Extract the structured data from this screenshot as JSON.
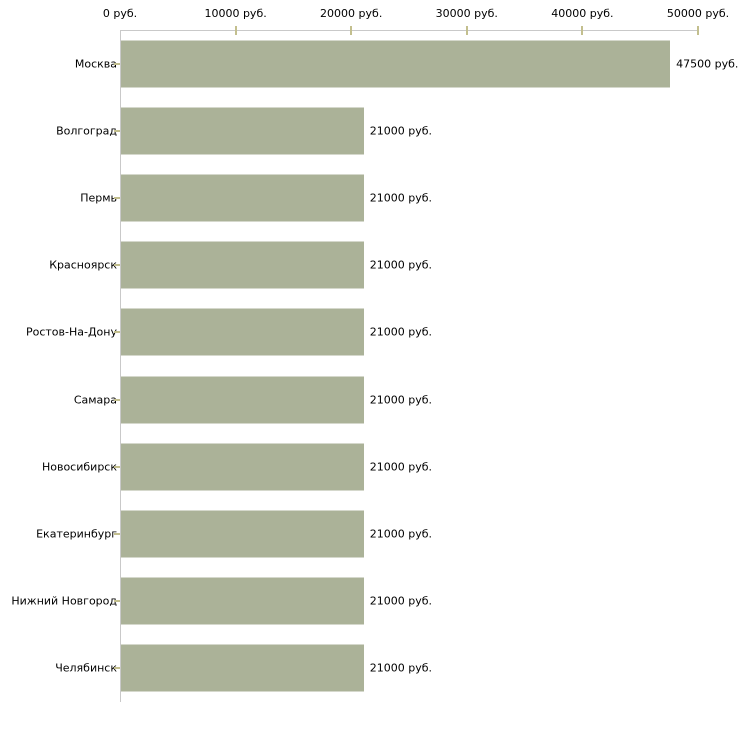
{
  "chart_data": {
    "type": "bar",
    "orientation": "horizontal",
    "title": "",
    "xlabel": "",
    "ylabel": "",
    "unit": "руб.",
    "categories": [
      "Москва",
      "Волгоград",
      "Пермь",
      "Красноярск",
      "Ростов-На-Дону",
      "Самара",
      "Новосибирск",
      "Екатеринбург",
      "Нижний Новгород",
      "Челябинск"
    ],
    "values": [
      47500,
      21000,
      21000,
      21000,
      21000,
      21000,
      21000,
      21000,
      21000,
      21000
    ],
    "bar_labels": [
      "47500 руб.",
      "21000 руб.",
      "21000 руб.",
      "21000 руб.",
      "21000 руб.",
      "21000 руб.",
      "21000 руб.",
      "21000 руб.",
      "21000 руб.",
      "21000 руб."
    ],
    "x_ticks": [
      "0 руб.",
      "10000 руб.",
      "20000 руб.",
      "30000 руб.",
      "40000 руб.",
      "50000 руб."
    ],
    "x_tick_values": [
      0,
      10000,
      20000,
      30000,
      40000,
      50000
    ],
    "xlim": [
      0,
      50000
    ],
    "grid": false,
    "legend": null,
    "axis_position": "top"
  },
  "colors": {
    "bar": "#abb298",
    "axis_line": "#c9c9c9",
    "tick_mark": "#c3bf8e",
    "text": "#000000",
    "background": "#ffffff"
  }
}
